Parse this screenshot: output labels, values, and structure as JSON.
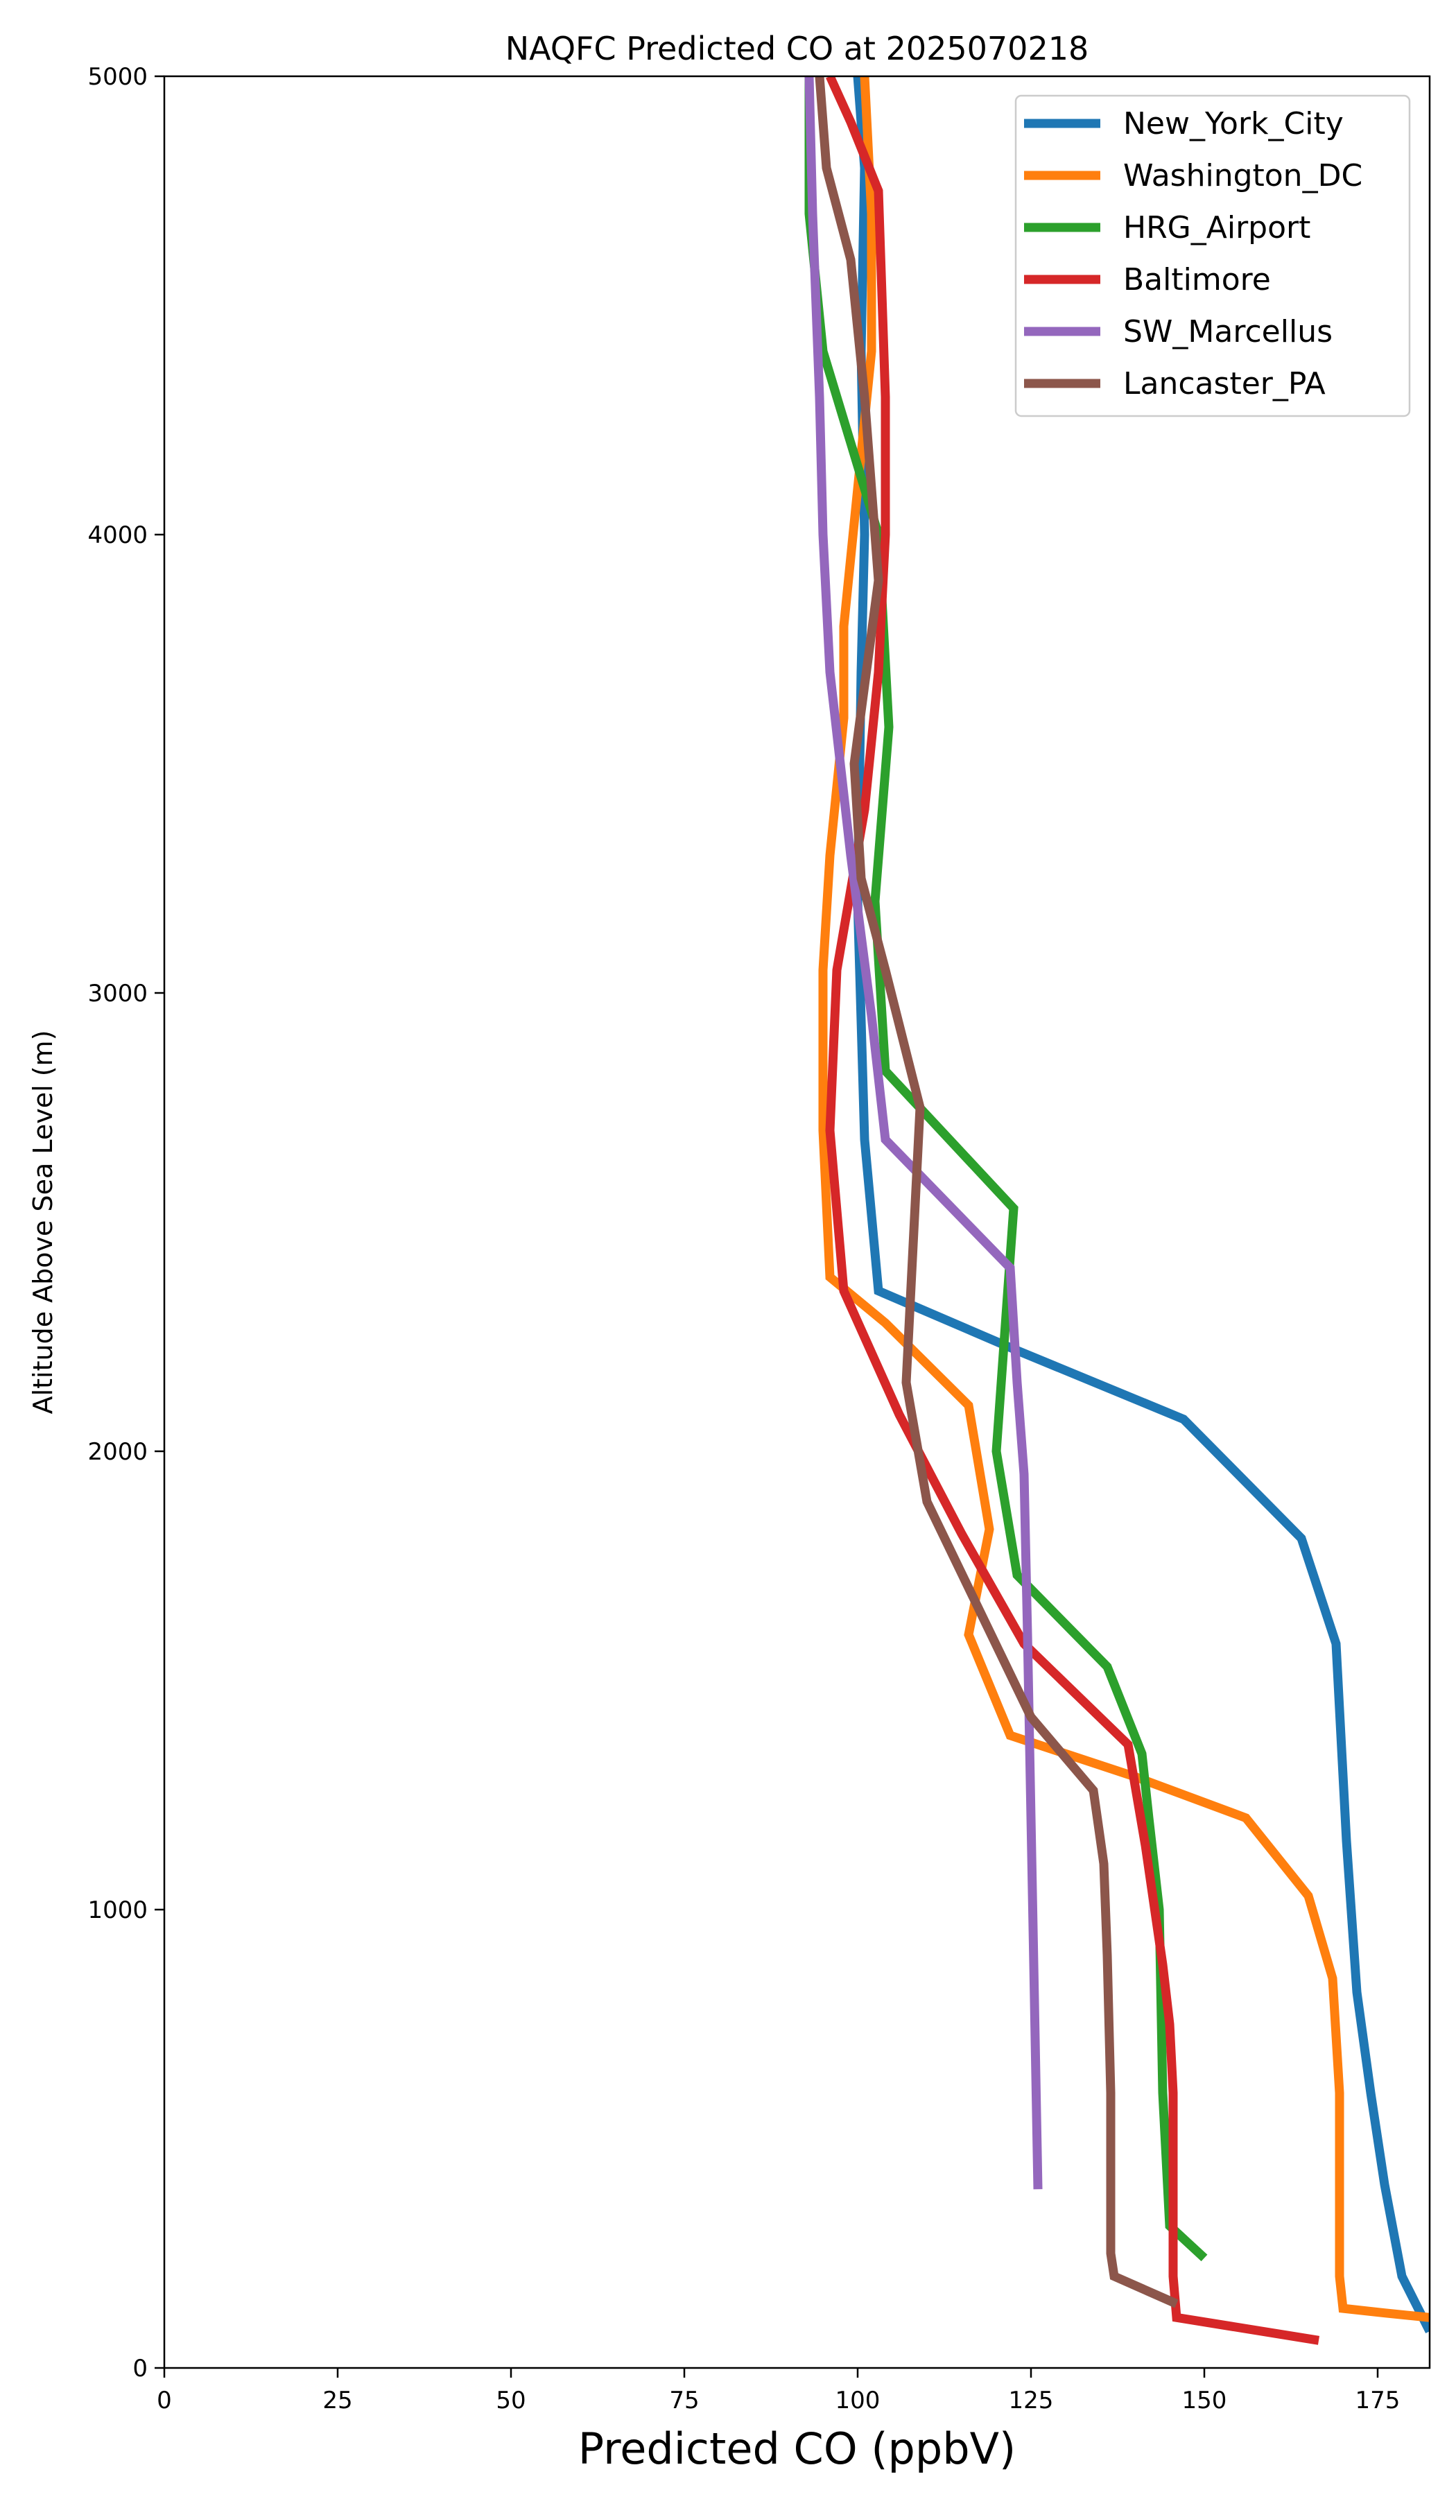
{
  "chart_data": {
    "type": "line",
    "title": "NAQFC Predicted CO at 2025070218",
    "xlabel": "Predicted CO (ppbV)",
    "ylabel": "Altitude Above Sea Level (m)",
    "xlim": [
      0,
      182.5
    ],
    "ylim": [
      0,
      5000
    ],
    "xticks": [
      0,
      25,
      50,
      75,
      100,
      125,
      150,
      175
    ],
    "yticks": [
      0,
      1000,
      2000,
      3000,
      4000,
      5000
    ],
    "grid": false,
    "legend_position": "top-right",
    "series": [
      {
        "name": "New_York_City",
        "color": "#1f77b4",
        "points": [
          [
            182.5,
            80
          ],
          [
            180.5,
            140
          ],
          [
            178.5,
            200
          ],
          [
            176,
            400
          ],
          [
            174,
            600
          ],
          [
            172,
            820
          ],
          [
            170.5,
            1150
          ],
          [
            169,
            1580
          ],
          [
            164,
            1810
          ],
          [
            147,
            2070
          ],
          [
            123,
            2220
          ],
          [
            103,
            2350
          ],
          [
            101,
            2680
          ],
          [
            100,
            3200
          ],
          [
            100.5,
            3700
          ],
          [
            101,
            4000
          ],
          [
            100.5,
            4400
          ],
          [
            101,
            4800
          ],
          [
            100,
            5000
          ]
        ]
      },
      {
        "name": "Washington_DC",
        "color": "#ff7f0e",
        "points": [
          [
            182.5,
            110
          ],
          [
            176,
            120
          ],
          [
            170,
            130
          ],
          [
            169.5,
            200
          ],
          [
            169.5,
            400
          ],
          [
            169.5,
            600
          ],
          [
            168.5,
            850
          ],
          [
            165,
            1030
          ],
          [
            156,
            1200
          ],
          [
            140,
            1290
          ],
          [
            122,
            1380
          ],
          [
            116,
            1600
          ],
          [
            119,
            1830
          ],
          [
            116,
            2100
          ],
          [
            104,
            2280
          ],
          [
            96,
            2380
          ],
          [
            95,
            2700
          ],
          [
            95,
            3050
          ],
          [
            96,
            3300
          ],
          [
            98,
            3600
          ],
          [
            98,
            3800
          ],
          [
            100,
            4100
          ],
          [
            102,
            4400
          ],
          [
            102,
            4700
          ],
          [
            101,
            5000
          ]
        ]
      },
      {
        "name": "HRG_Airport",
        "color": "#2ca02c",
        "points": [
          [
            150,
            240
          ],
          [
            145,
            310
          ],
          [
            144,
            600
          ],
          [
            143.5,
            1000
          ],
          [
            142,
            1200
          ],
          [
            141,
            1340
          ],
          [
            136,
            1530
          ],
          [
            123,
            1730
          ],
          [
            120,
            2000
          ],
          [
            122.5,
            2530
          ],
          [
            104,
            2830
          ],
          [
            102.5,
            3200
          ],
          [
            104.5,
            3580
          ],
          [
            103,
            4000
          ],
          [
            99,
            4200
          ],
          [
            95,
            4400
          ],
          [
            93,
            4700
          ],
          [
            93,
            5000
          ]
        ]
      },
      {
        "name": "Baltimore",
        "color": "#d62728",
        "points": [
          [
            166.5,
            60
          ],
          [
            146,
            110
          ],
          [
            145.5,
            200
          ],
          [
            145.5,
            400
          ],
          [
            145.5,
            600
          ],
          [
            145,
            750
          ],
          [
            144,
            880
          ],
          [
            141.5,
            1140
          ],
          [
            139,
            1360
          ],
          [
            124,
            1580
          ],
          [
            115,
            1820
          ],
          [
            106,
            2080
          ],
          [
            98,
            2350
          ],
          [
            96,
            2700
          ],
          [
            97,
            3050
          ],
          [
            101,
            3400
          ],
          [
            103,
            3700
          ],
          [
            104,
            4000
          ],
          [
            104,
            4300
          ],
          [
            103,
            4750
          ],
          [
            99,
            4900
          ],
          [
            96,
            5000
          ]
        ]
      },
      {
        "name": "SW_Marcellus",
        "color": "#9467bd",
        "points": [
          [
            126,
            390
          ],
          [
            125.5,
            800
          ],
          [
            125,
            1200
          ],
          [
            124.5,
            1600
          ],
          [
            124,
            1950
          ],
          [
            123,
            2150
          ],
          [
            122,
            2400
          ],
          [
            104,
            2680
          ],
          [
            102,
            2950
          ],
          [
            99,
            3300
          ],
          [
            96,
            3700
          ],
          [
            95,
            4000
          ],
          [
            94.5,
            4300
          ],
          [
            93.5,
            4700
          ],
          [
            93,
            5000
          ]
        ]
      },
      {
        "name": "Lancaster_PA",
        "color": "#8c564b",
        "points": [
          [
            146,
            140
          ],
          [
            137,
            200
          ],
          [
            136.5,
            250
          ],
          [
            136.5,
            600
          ],
          [
            136,
            900
          ],
          [
            135.5,
            1100
          ],
          [
            134,
            1260
          ],
          [
            125,
            1420
          ],
          [
            110,
            1890
          ],
          [
            107,
            2150
          ],
          [
            108,
            2450
          ],
          [
            109,
            2750
          ],
          [
            104,
            3050
          ],
          [
            100.5,
            3250
          ],
          [
            99.5,
            3500
          ],
          [
            103,
            3900
          ],
          [
            101,
            4300
          ],
          [
            99,
            4600
          ],
          [
            95.5,
            4800
          ],
          [
            94.5,
            5000
          ]
        ]
      }
    ]
  }
}
